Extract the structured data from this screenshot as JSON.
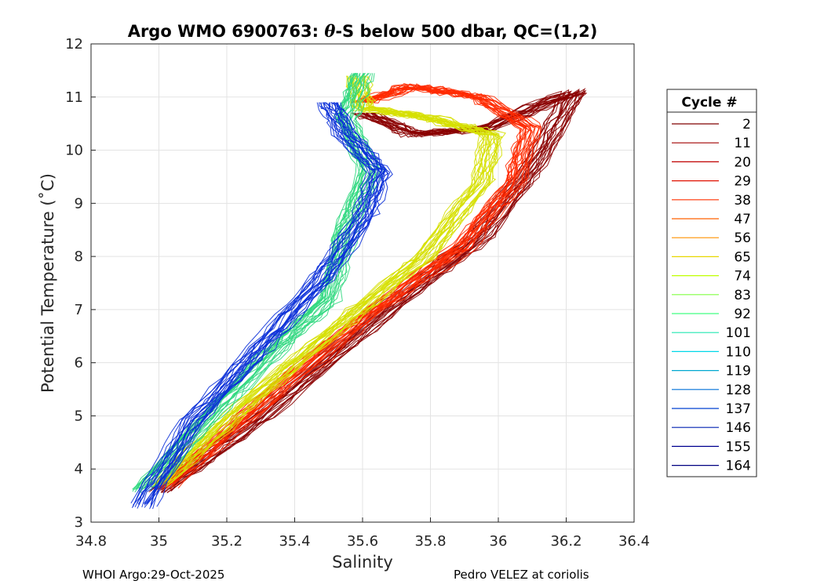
{
  "chart_data": {
    "type": "line",
    "title_prefix": "Argo WMO 6900763: ",
    "title_symbol": "θ",
    "title_suffix": "-S below 500 dbar,  QC=(1,2)",
    "xlabel": "Salinity",
    "ylabel": "Potential Temperature (˚C)",
    "xlim": [
      34.8,
      36.4
    ],
    "ylim": [
      3,
      12
    ],
    "xticks": [
      34.8,
      35,
      35.2,
      35.4,
      35.6,
      35.8,
      36,
      36.2,
      36.4
    ],
    "xtick_labels": [
      "34.8",
      "35",
      "35.2",
      "35.4",
      "35.6",
      "35.8",
      "36",
      "36.2",
      "36.4"
    ],
    "yticks": [
      3,
      4,
      5,
      6,
      7,
      8,
      9,
      10,
      11,
      12
    ],
    "ytick_labels": [
      "3",
      "4",
      "5",
      "6",
      "7",
      "8",
      "9",
      "10",
      "11",
      "12"
    ],
    "grid": true,
    "legend": {
      "title": "Cycle #",
      "position": "right",
      "cycles": [
        "2",
        "11",
        "20",
        "29",
        "38",
        "47",
        "56",
        "65",
        "74",
        "83",
        "92",
        "101",
        "110",
        "119",
        "128",
        "137",
        "146",
        "155",
        "164"
      ],
      "colors": [
        "#800000",
        "#a00000",
        "#c00000",
        "#e01000",
        "#ff3000",
        "#ff6000",
        "#ff9000",
        "#e8d800",
        "#c0ff00",
        "#80ff40",
        "#40ff80",
        "#20e8b0",
        "#00d8e8",
        "#00a8d0",
        "#0070d8",
        "#0040d0",
        "#0020b0",
        "#000090",
        "#000080"
      ]
    },
    "series_groups": [
      {
        "group": "cycles 2-20 (dark red)",
        "color": "#8b0000",
        "points": [
          [
            35.0,
            3.6
          ],
          [
            35.3,
            5.0
          ],
          [
            35.65,
            6.9
          ],
          [
            35.95,
            8.4
          ],
          [
            36.1,
            9.7
          ],
          [
            36.22,
            11.1
          ],
          [
            35.95,
            10.4
          ],
          [
            35.75,
            10.3
          ],
          [
            35.6,
            10.7
          ]
        ]
      },
      {
        "group": "cycles 29-56 (red/orange)",
        "color": "#ff2a00",
        "points": [
          [
            35.02,
            3.65
          ],
          [
            35.3,
            5.2
          ],
          [
            35.6,
            6.8
          ],
          [
            35.9,
            8.2
          ],
          [
            36.05,
            9.4
          ],
          [
            36.1,
            10.4
          ],
          [
            35.95,
            11.0
          ],
          [
            35.75,
            11.2
          ],
          [
            35.6,
            10.9
          ]
        ]
      },
      {
        "group": "cycles 65-83 (yellow/green)",
        "color": "#d6e000",
        "points": [
          [
            35.0,
            3.7
          ],
          [
            35.25,
            5.2
          ],
          [
            35.55,
            6.8
          ],
          [
            35.78,
            8.0
          ],
          [
            35.95,
            9.4
          ],
          [
            35.98,
            10.3
          ],
          [
            35.8,
            10.6
          ],
          [
            35.6,
            10.8
          ],
          [
            35.58,
            11.4
          ]
        ]
      },
      {
        "group": "cycles 92-110 (green/cyan)",
        "color": "#30d880",
        "points": [
          [
            34.95,
            3.6
          ],
          [
            35.15,
            5.0
          ],
          [
            35.35,
            6.3
          ],
          [
            35.5,
            7.2
          ],
          [
            35.55,
            8.5
          ],
          [
            35.62,
            9.6
          ],
          [
            35.55,
            10.6
          ],
          [
            35.6,
            11.45
          ]
        ]
      },
      {
        "group": "cycles 119-164 (blue)",
        "color": "#0a2fd8",
        "points": [
          [
            34.95,
            3.3
          ],
          [
            35.1,
            4.9
          ],
          [
            35.3,
            6.3
          ],
          [
            35.48,
            7.6
          ],
          [
            35.6,
            8.7
          ],
          [
            35.65,
            9.6
          ],
          [
            35.55,
            10.3
          ],
          [
            35.5,
            10.9
          ]
        ]
      }
    ]
  },
  "footer": {
    "left": "WHOI Argo:29-Oct-2025",
    "right": "Pedro VELEZ at coriolis"
  }
}
